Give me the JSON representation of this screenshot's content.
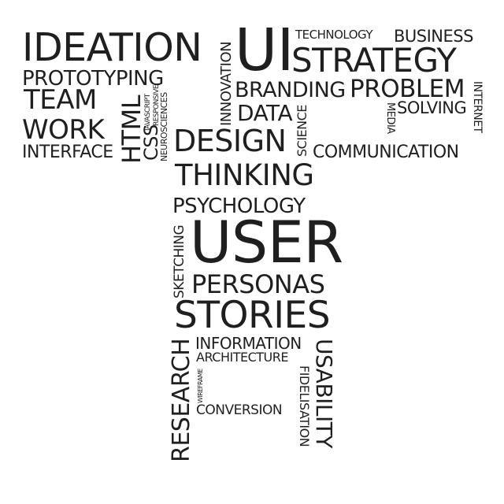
{
  "words": {
    "ideation": "IDEATION",
    "innovation": "INNOVATION",
    "ui": "UI",
    "technology": "TECHNOLOGY",
    "business": "BUSINESS",
    "prototyping": "PROTOTYPING",
    "strategy": "STRATEGY",
    "team": "TEAM",
    "html": "HTML",
    "javascript": "JAVASCRIPT",
    "responsive": "RESPONSIVE",
    "branding": "BRANDING",
    "problem": "PROBLEM",
    "internet": "INTERNET",
    "css": "CSS",
    "neurosciences": "NEUROSCIENCES",
    "data": "DATA",
    "solving": "SOLVING",
    "media": "MEDIA",
    "work": "WORK",
    "science": "SCIENCE",
    "interface": "INTERFACE",
    "design": "DESIGN",
    "communication": "COMMUNICATION",
    "thinking": "THINKING",
    "psychology": "PSYCHOLOGY",
    "sketching": "SKETCHING",
    "user": "USER",
    "personas": "PERSONAS",
    "stories": "STORIES",
    "research": "RESEARCH",
    "information": "INFORMATION",
    "architecture": "ARCHITECTURE",
    "wireframe": "WIREFRAME",
    "usability": "USABILITY",
    "fidelisation": "FIDELISATION",
    "conversion": "CONVERSION"
  }
}
